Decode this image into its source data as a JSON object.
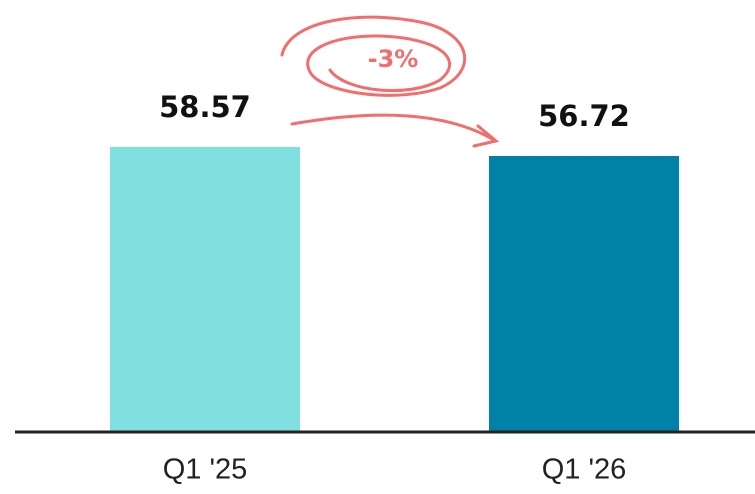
{
  "chart_data": {
    "type": "bar",
    "categories": [
      "Q1 '25",
      "Q1 '26"
    ],
    "values": [
      58.57,
      56.72
    ],
    "colors": [
      "#7fe0df",
      "#0081a8"
    ],
    "annotation": "-3%"
  }
}
